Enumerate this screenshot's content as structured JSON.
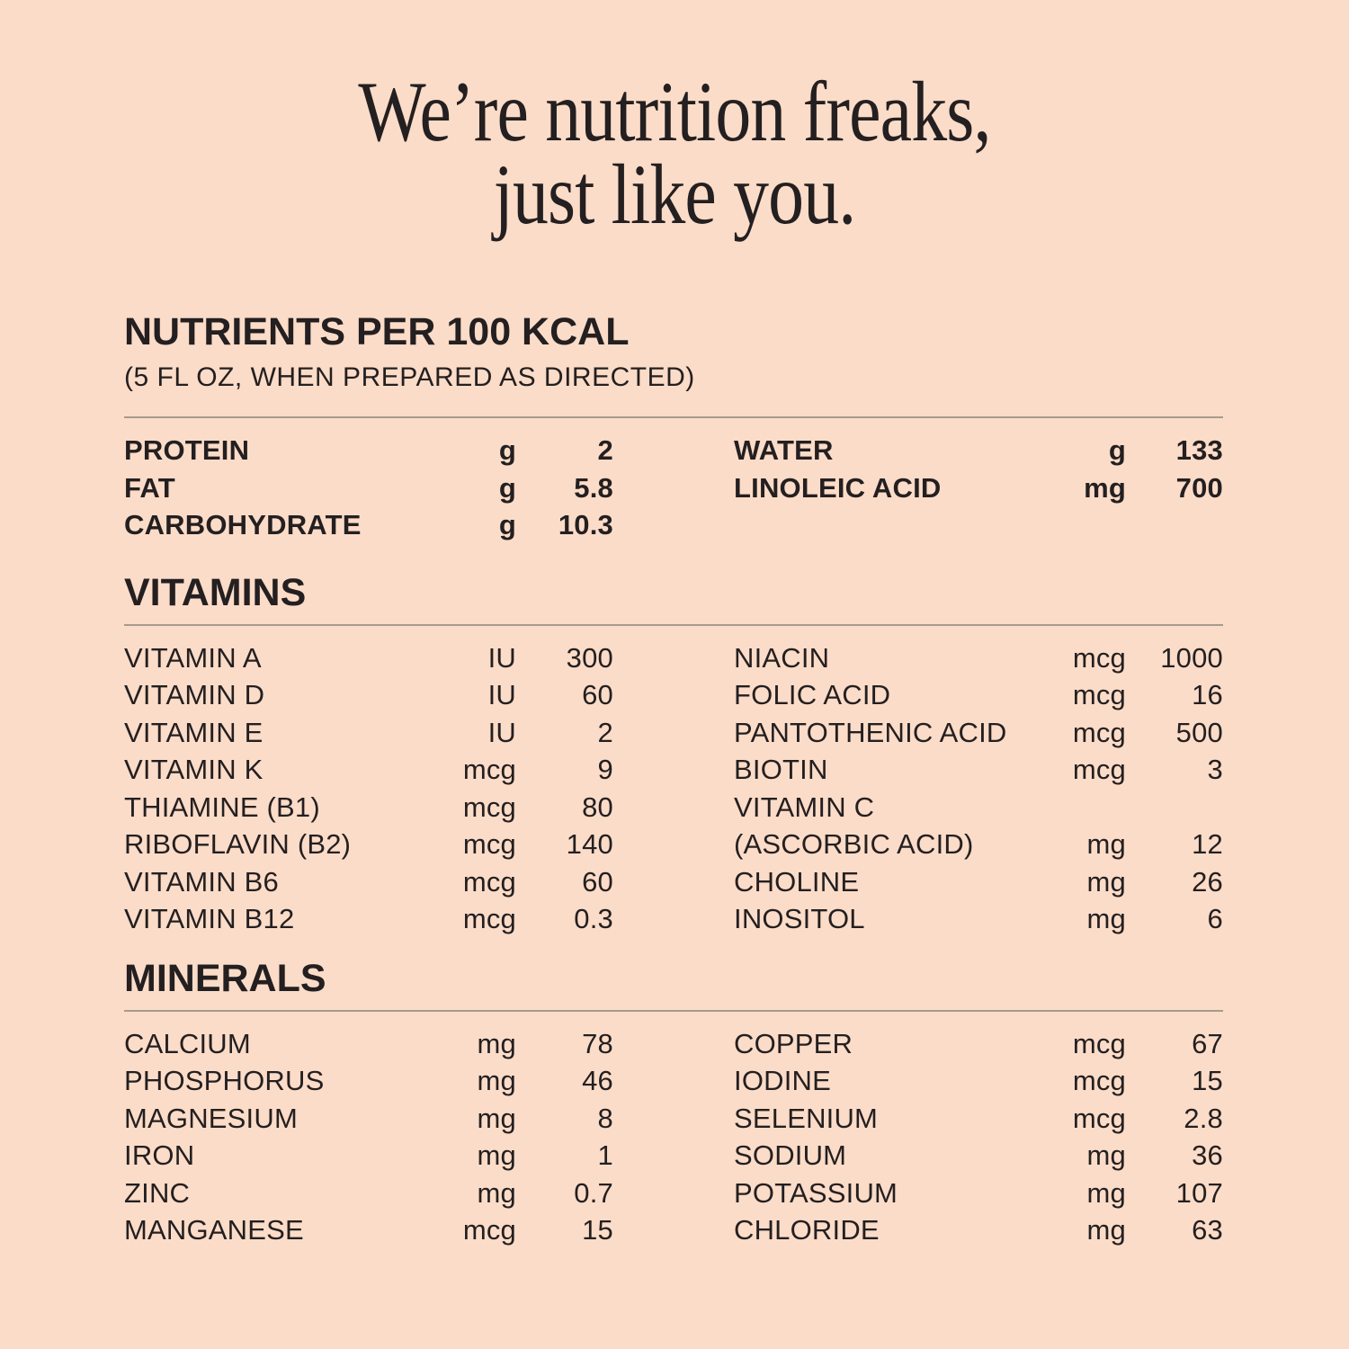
{
  "page": {
    "background": "#FBDCC8",
    "text_color": "#241F20",
    "rule_color": "#8C837B"
  },
  "title": {
    "line1": "We’re nutrition freaks,",
    "line2": "just like you."
  },
  "nutrients_per_100_kcal": {
    "heading": "NUTRIENTS PER 100 KCAL",
    "subheading": "(5 FL OZ, WHEN PREPARED AS DIRECTED)",
    "left_rows": [
      {
        "label": "PROTEIN",
        "unit": "g",
        "value": "2"
      },
      {
        "label": "FAT",
        "unit": "g",
        "value": "5.8"
      },
      {
        "label": "CARBOHYDRATE",
        "unit": "g",
        "value": "10.3"
      }
    ],
    "right_rows": [
      {
        "label": "WATER",
        "unit": "g",
        "value": "133"
      },
      {
        "label": "LINOLEIC ACID",
        "unit": "mg",
        "value": "700"
      }
    ]
  },
  "vitamins": {
    "heading": "VITAMINS",
    "left_rows": [
      {
        "label": "VITAMIN A",
        "unit": "IU",
        "value": "300"
      },
      {
        "label": "VITAMIN D",
        "unit": "IU",
        "value": "60"
      },
      {
        "label": "VITAMIN E",
        "unit": "IU",
        "value": "2"
      },
      {
        "label": "VITAMIN K",
        "unit": "mcg",
        "value": "9"
      },
      {
        "label": "THIAMINE (B1)",
        "unit": "mcg",
        "value": "80"
      },
      {
        "label": "RIBOFLAVIN (B2)",
        "unit": "mcg",
        "value": "140"
      },
      {
        "label": "VITAMIN B6",
        "unit": "mcg",
        "value": "60"
      },
      {
        "label": "VITAMIN B12",
        "unit": "mcg",
        "value": "0.3"
      }
    ],
    "right_rows": [
      {
        "label": "NIACIN",
        "unit": "mcg",
        "value": "1000"
      },
      {
        "label": "FOLIC ACID",
        "unit": "mcg",
        "value": "16"
      },
      {
        "label": "PANTOTHENIC ACID",
        "unit": "mcg",
        "value": "500"
      },
      {
        "label": "BIOTIN",
        "unit": "mcg",
        "value": "3"
      },
      {
        "label": "VITAMIN C",
        "unit": "",
        "value": ""
      },
      {
        "label": "(ASCORBIC ACID)",
        "unit": "mg",
        "value": "12"
      },
      {
        "label": "CHOLINE",
        "unit": "mg",
        "value": "26"
      },
      {
        "label": "INOSITOL",
        "unit": "mg",
        "value": "6"
      }
    ]
  },
  "minerals": {
    "heading": "MINERALS",
    "left_rows": [
      {
        "label": "CALCIUM",
        "unit": "mg",
        "value": "78"
      },
      {
        "label": "PHOSPHORUS",
        "unit": "mg",
        "value": "46"
      },
      {
        "label": "MAGNESIUM",
        "unit": "mg",
        "value": "8"
      },
      {
        "label": "IRON",
        "unit": "mg",
        "value": "1"
      },
      {
        "label": "ZINC",
        "unit": "mg",
        "value": "0.7"
      },
      {
        "label": "MANGANESE",
        "unit": "mcg",
        "value": "15"
      }
    ],
    "right_rows": [
      {
        "label": "COPPER",
        "unit": "mcg",
        "value": "67"
      },
      {
        "label": "IODINE",
        "unit": "mcg",
        "value": "15"
      },
      {
        "label": "SELENIUM",
        "unit": "mcg",
        "value": "2.8"
      },
      {
        "label": "SODIUM",
        "unit": "mg",
        "value": "36"
      },
      {
        "label": "POTASSIUM",
        "unit": "mg",
        "value": "107"
      },
      {
        "label": "CHLORIDE",
        "unit": "mg",
        "value": "63"
      }
    ]
  }
}
